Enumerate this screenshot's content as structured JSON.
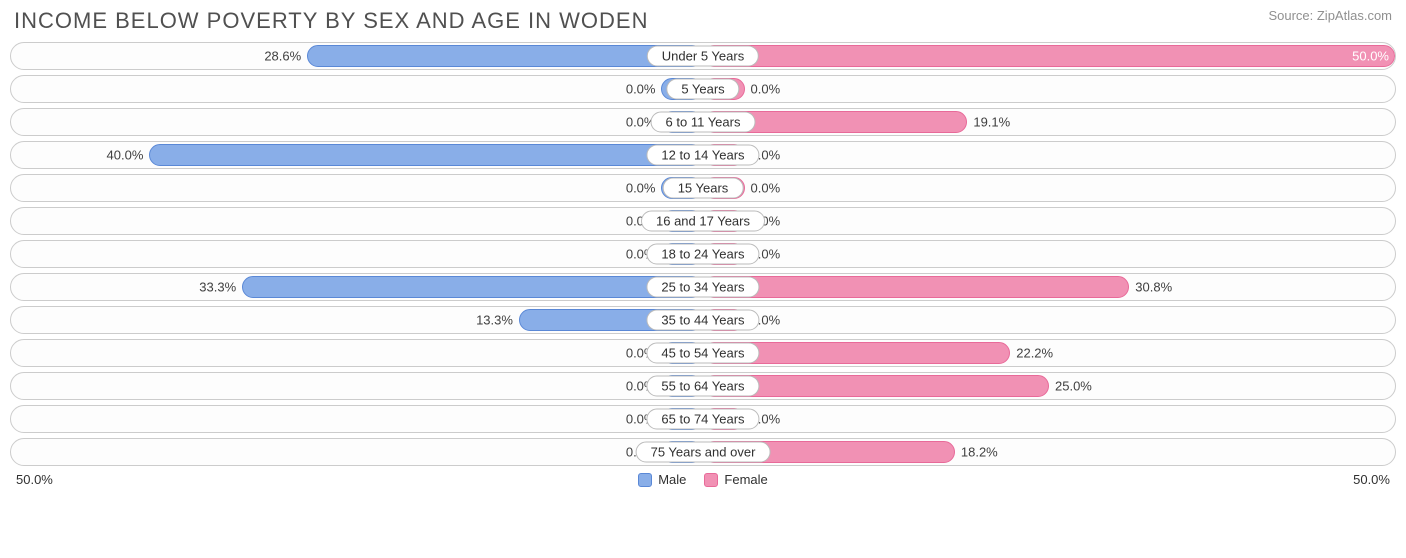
{
  "title": "INCOME BELOW POVERTY BY SEX AND AGE IN WODEN",
  "source": "Source: ZipAtlas.com",
  "axis_max": 50.0,
  "axis_label_left": "50.0%",
  "axis_label_right": "50.0%",
  "min_bar_pct": 6.0,
  "colors": {
    "male_fill": "#89aee8",
    "male_border": "#5a88d6",
    "female_fill": "#f191b4",
    "female_border": "#e86a99",
    "row_border": "#cccccc",
    "text": "#404040",
    "title": "#505050",
    "source": "#909090"
  },
  "legend": {
    "male": "Male",
    "female": "Female"
  },
  "rows": [
    {
      "category": "Under 5 Years",
      "male": 28.6,
      "female": 50.0,
      "male_label": "28.6%",
      "female_label": "50.0%"
    },
    {
      "category": "5 Years",
      "male": 0.0,
      "female": 0.0,
      "male_label": "0.0%",
      "female_label": "0.0%"
    },
    {
      "category": "6 to 11 Years",
      "male": 0.0,
      "female": 19.1,
      "male_label": "0.0%",
      "female_label": "19.1%"
    },
    {
      "category": "12 to 14 Years",
      "male": 40.0,
      "female": 0.0,
      "male_label": "40.0%",
      "female_label": "0.0%"
    },
    {
      "category": "15 Years",
      "male": 0.0,
      "female": 0.0,
      "male_label": "0.0%",
      "female_label": "0.0%"
    },
    {
      "category": "16 and 17 Years",
      "male": 0.0,
      "female": 0.0,
      "male_label": "0.0%",
      "female_label": "0.0%"
    },
    {
      "category": "18 to 24 Years",
      "male": 0.0,
      "female": 0.0,
      "male_label": "0.0%",
      "female_label": "0.0%"
    },
    {
      "category": "25 to 34 Years",
      "male": 33.3,
      "female": 30.8,
      "male_label": "33.3%",
      "female_label": "30.8%"
    },
    {
      "category": "35 to 44 Years",
      "male": 13.3,
      "female": 0.0,
      "male_label": "13.3%",
      "female_label": "0.0%"
    },
    {
      "category": "45 to 54 Years",
      "male": 0.0,
      "female": 22.2,
      "male_label": "0.0%",
      "female_label": "22.2%"
    },
    {
      "category": "55 to 64 Years",
      "male": 0.0,
      "female": 25.0,
      "male_label": "0.0%",
      "female_label": "25.0%"
    },
    {
      "category": "65 to 74 Years",
      "male": 0.0,
      "female": 0.0,
      "male_label": "0.0%",
      "female_label": "0.0%"
    },
    {
      "category": "75 Years and over",
      "male": 0.0,
      "female": 18.2,
      "male_label": "0.0%",
      "female_label": "18.2%"
    }
  ]
}
